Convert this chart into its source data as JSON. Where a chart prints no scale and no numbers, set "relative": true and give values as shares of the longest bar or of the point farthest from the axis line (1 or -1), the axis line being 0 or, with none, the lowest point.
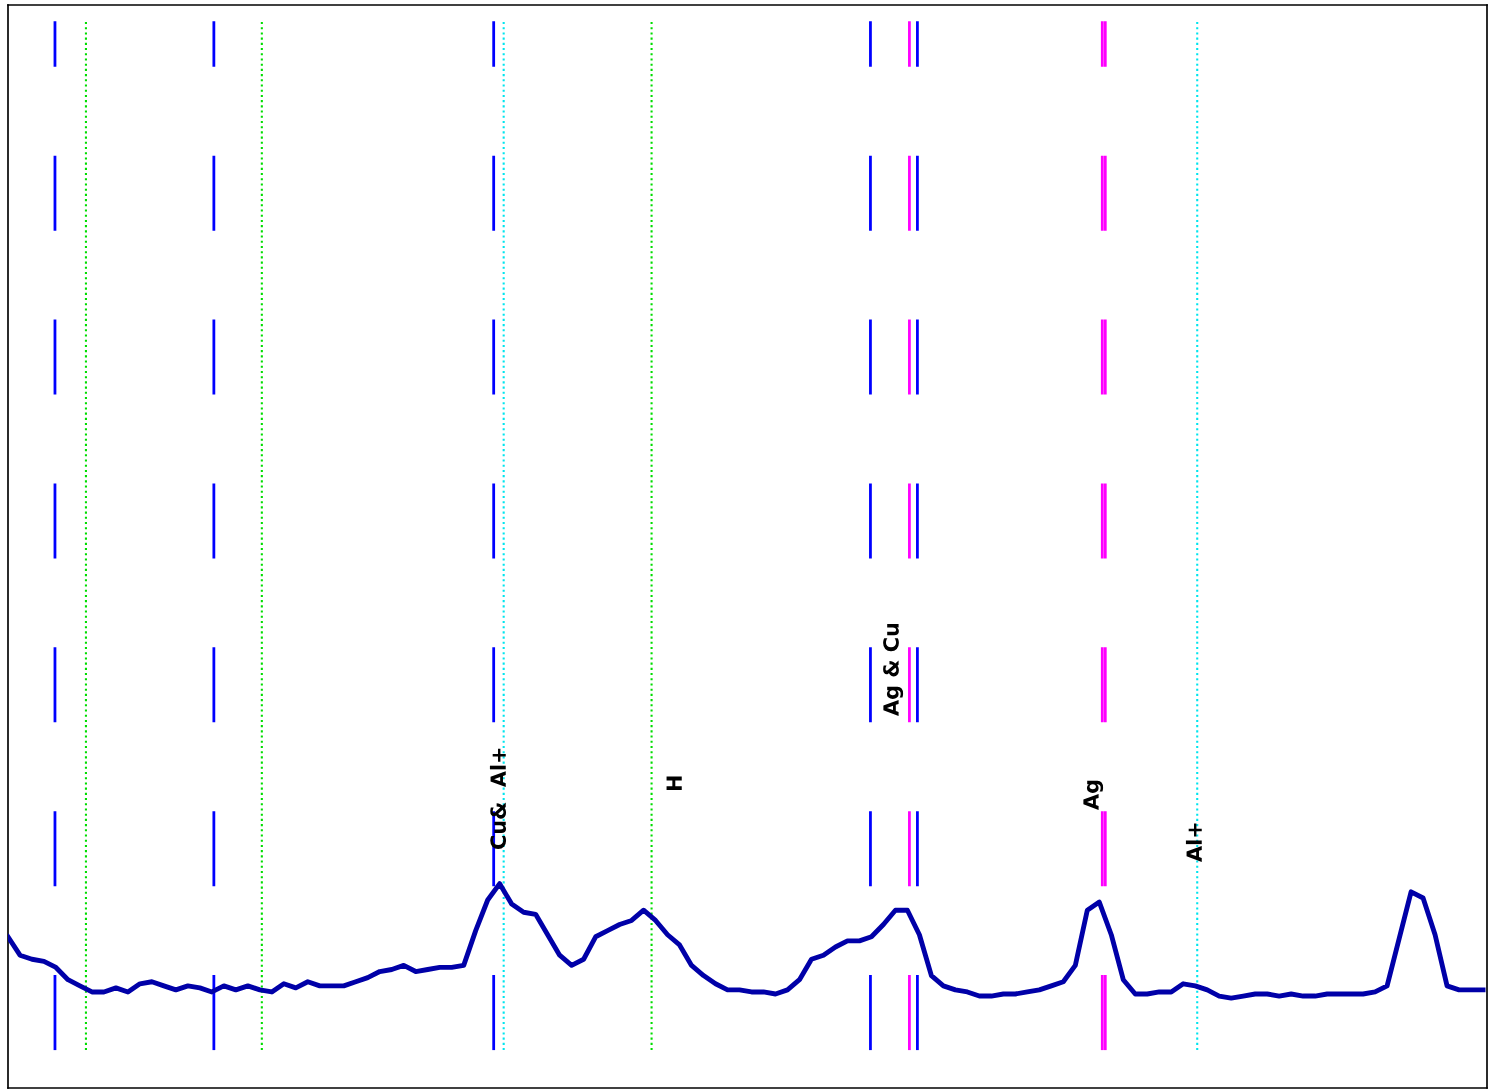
{
  "chart_data": {
    "type": "line",
    "relative": true,
    "marker": "none",
    "line_style": "solid",
    "categories": [
      null,
      null,
      null,
      null,
      null,
      null,
      null,
      null,
      null,
      null,
      null,
      null,
      null,
      null,
      null,
      null,
      null,
      null,
      null,
      null,
      null,
      null,
      null,
      null,
      null,
      null,
      null,
      null,
      null,
      null,
      null,
      null,
      null,
      null,
      null,
      null,
      null,
      null,
      null,
      null,
      null,
      null,
      null,
      null,
      null,
      null,
      null,
      null,
      null,
      null,
      null,
      null,
      null,
      null,
      null,
      null,
      null,
      null,
      null,
      null,
      null,
      null,
      null,
      null,
      null,
      null,
      null,
      null,
      null,
      null,
      null,
      null,
      null,
      null,
      null,
      null,
      null,
      null,
      null,
      null,
      null,
      null,
      null,
      null,
      null,
      null,
      null,
      null,
      null,
      null,
      null,
      null,
      null,
      null,
      null,
      null,
      null,
      null,
      null,
      null,
      null,
      null,
      null,
      null,
      null,
      null,
      null,
      null,
      null,
      null,
      null,
      null,
      null,
      null,
      null,
      null,
      null,
      null,
      null,
      null,
      null,
      null,
      null,
      null
    ],
    "series": [
      {
        "color": "#0000a8",
        "values": [
          0.74,
          0.65,
          0.63,
          0.62,
          0.59,
          0.53,
          0.5,
          0.47,
          0.47,
          0.49,
          0.47,
          0.51,
          0.52,
          0.5,
          0.48,
          0.5,
          0.49,
          0.47,
          0.5,
          0.48,
          0.5,
          0.48,
          0.47,
          0.51,
          0.49,
          0.52,
          0.5,
          0.5,
          0.5,
          0.52,
          0.54,
          0.57,
          0.58,
          0.6,
          0.57,
          0.58,
          0.59,
          0.59,
          0.6,
          0.77,
          0.92,
          1.0,
          0.9,
          0.86,
          0.85,
          0.75,
          0.65,
          0.6,
          0.63,
          0.74,
          0.77,
          0.8,
          0.82,
          0.87,
          0.82,
          0.75,
          0.7,
          0.6,
          0.55,
          0.51,
          0.48,
          0.48,
          0.47,
          0.47,
          0.46,
          0.48,
          0.53,
          0.63,
          0.65,
          0.69,
          0.72,
          0.72,
          0.74,
          0.8,
          0.87,
          0.87,
          0.75,
          0.55,
          0.5,
          0.48,
          0.47,
          0.45,
          0.45,
          0.46,
          0.46,
          0.47,
          0.48,
          0.5,
          0.52,
          0.6,
          0.87,
          0.91,
          0.75,
          0.53,
          0.46,
          0.46,
          0.47,
          0.47,
          0.51,
          0.5,
          0.48,
          0.45,
          0.44,
          0.45,
          0.46,
          0.46,
          0.45,
          0.46,
          0.45,
          0.45,
          0.46,
          0.46,
          0.46,
          0.46,
          0.47,
          0.5,
          0.73,
          0.96,
          0.93,
          0.75,
          0.5,
          0.48,
          0.48,
          0.48
        ]
      }
    ],
    "annotations": [
      "Cu&  Al+",
      "H",
      "Ag & Cu",
      "Ag",
      "Al+"
    ]
  }
}
